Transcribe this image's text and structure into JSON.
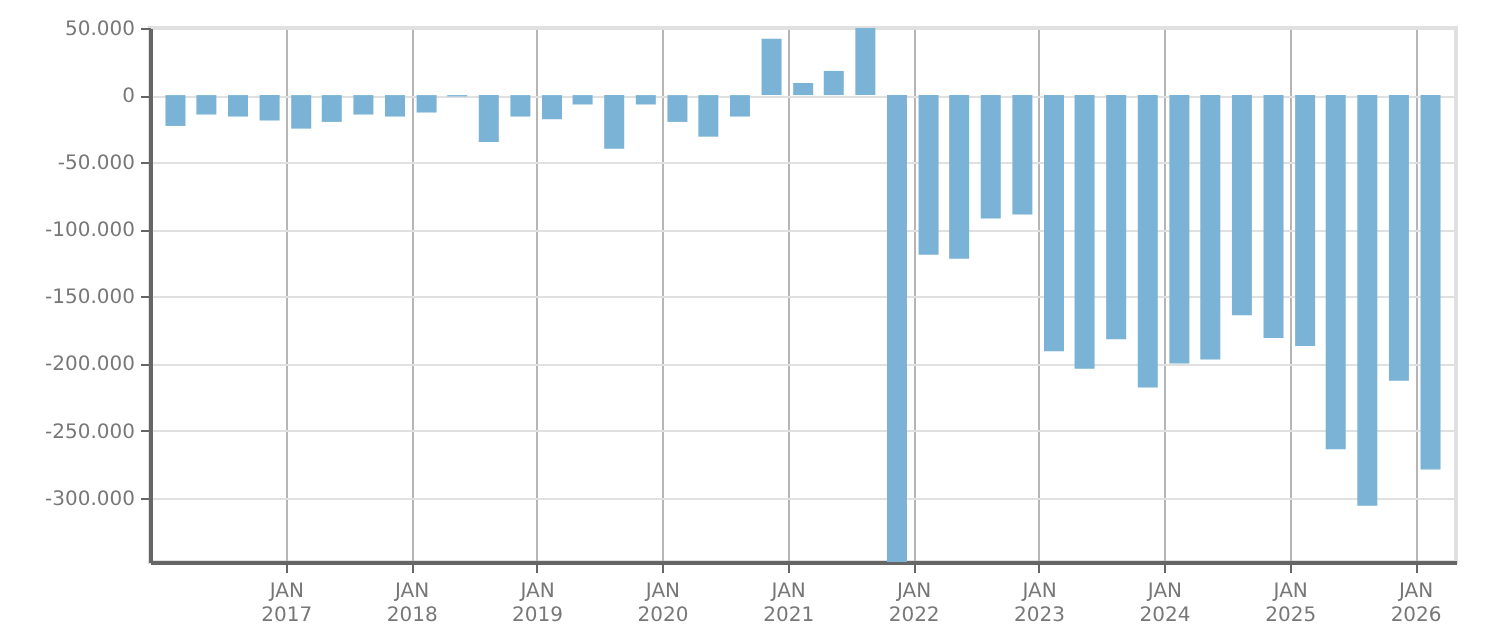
{
  "chart_data": {
    "type": "bar",
    "x": [
      "2016-02-15",
      "2016-05-15",
      "2016-08-15",
      "2016-11-15",
      "2017-02-15",
      "2017-05-15",
      "2017-08-15",
      "2017-11-15",
      "2018-02-15",
      "2018-05-15",
      "2018-08-15",
      "2018-11-15",
      "2019-02-15",
      "2019-05-15",
      "2019-08-15",
      "2019-11-15",
      "2020-02-15",
      "2020-05-15",
      "2020-08-15",
      "2020-11-15",
      "2021-02-15",
      "2021-05-15",
      "2021-08-15",
      "2021-11-15",
      "2022-02-15",
      "2022-05-15",
      "2022-08-15",
      "2022-11-15",
      "2023-02-15",
      "2023-05-15",
      "2023-08-15",
      "2023-11-15",
      "2024-02-15",
      "2024-05-15",
      "2024-08-15",
      "2024-11-15",
      "2025-02-15",
      "2025-05-15",
      "2025-08-15",
      "2025-11-15",
      "2026-02-15"
    ],
    "values": [
      -23000,
      -14500,
      -16000,
      -19000,
      -25000,
      -20000,
      -14500,
      -16000,
      -13000,
      -1000,
      -35000,
      -16000,
      -18000,
      -7000,
      -40000,
      -7000,
      -20000,
      -31000,
      -16000,
      42000,
      9000,
      18000,
      50000,
      -348000,
      -119000,
      -122000,
      -92000,
      -89000,
      -191000,
      -204000,
      -182000,
      -218000,
      -200000,
      -197000,
      -164000,
      -181000,
      -187000,
      -264000,
      -306000,
      -213000,
      -279000
    ],
    "color": "#7ab3d5",
    "xlim": [
      "2016-01-01",
      "2026-04-01"
    ],
    "xticks": [
      {
        "value": "2017-01-01",
        "label": "JAN 2017"
      },
      {
        "value": "2018-01-01",
        "label": "JAN 2018"
      },
      {
        "value": "2019-01-01",
        "label": "JAN 2019"
      },
      {
        "value": "2020-01-01",
        "label": "JAN 2020"
      },
      {
        "value": "2021-01-01",
        "label": "JAN 2021"
      },
      {
        "value": "2022-01-01",
        "label": "JAN 2022"
      },
      {
        "value": "2023-01-01",
        "label": "JAN 2023"
      },
      {
        "value": "2024-01-01",
        "label": "JAN 2024"
      },
      {
        "value": "2025-01-01",
        "label": "JAN 2025"
      },
      {
        "value": "2026-01-01",
        "label": "JAN 2026"
      }
    ],
    "ylim": [
      -348000,
      50000
    ],
    "yticks": [
      {
        "value": 50000,
        "label": "50.000"
      },
      {
        "value": 0,
        "label": "0"
      },
      {
        "value": -50000,
        "label": "-50.000"
      },
      {
        "value": -100000,
        "label": "-100.000"
      },
      {
        "value": -150000,
        "label": "-150.000"
      },
      {
        "value": -200000,
        "label": "-200.000"
      },
      {
        "value": -250000,
        "label": "-250.000"
      },
      {
        "value": -300000,
        "label": "-300.000"
      }
    ],
    "grid": true
  }
}
